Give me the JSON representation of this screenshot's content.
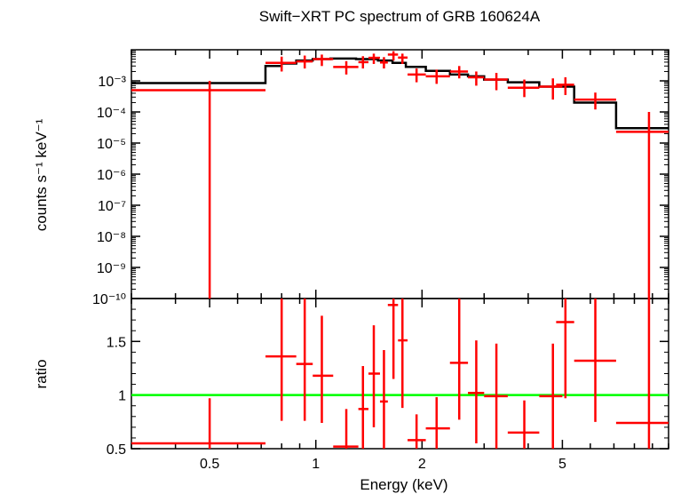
{
  "chart_data": [
    {
      "type": "scatter",
      "title": "Swift−XRT PC spectrum of GRB 160624A",
      "xlabel": "",
      "ylabel": "counts s⁻¹ keV⁻¹",
      "x_scale": "log",
      "y_scale": "log",
      "xlim": [
        0.3,
        10
      ],
      "ylim": [
        1e-10,
        0.01
      ],
      "ytick_labels": [
        "10⁻¹⁰",
        "10⁻⁹",
        "10⁻⁸",
        "10⁻⁷",
        "10⁻⁶",
        "10⁻⁵",
        "10⁻⁴",
        "10⁻³"
      ],
      "ytick_values": [
        1e-10,
        1e-09,
        1e-08,
        1e-07,
        1e-06,
        1e-05,
        0.0001,
        0.001
      ],
      "series": [
        {
          "kind": "data-with-errors",
          "color": "#ff0000",
          "points": [
            {
              "x": 0.5,
              "xlo": 0.3,
              "xhi": 0.72,
              "y": 0.0005,
              "ylo": 1e-10,
              "yhi": 0.001
            },
            {
              "x": 0.8,
              "xlo": 0.72,
              "xhi": 0.88,
              "y": 0.0038,
              "ylo": 0.002,
              "yhi": 0.006
            },
            {
              "x": 0.93,
              "xlo": 0.88,
              "xhi": 0.98,
              "y": 0.0042,
              "ylo": 0.0025,
              "yhi": 0.0065
            },
            {
              "x": 1.04,
              "xlo": 0.98,
              "xhi": 1.12,
              "y": 0.005,
              "ylo": 0.003,
              "yhi": 0.007
            },
            {
              "x": 1.22,
              "xlo": 1.12,
              "xhi": 1.32,
              "y": 0.0028,
              "ylo": 0.0016,
              "yhi": 0.0043
            },
            {
              "x": 1.36,
              "xlo": 1.32,
              "xhi": 1.41,
              "y": 0.004,
              "ylo": 0.0025,
              "yhi": 0.0062
            },
            {
              "x": 1.46,
              "xlo": 1.41,
              "xhi": 1.52,
              "y": 0.0055,
              "ylo": 0.0035,
              "yhi": 0.0075
            },
            {
              "x": 1.56,
              "xlo": 1.52,
              "xhi": 1.6,
              "y": 0.0039,
              "ylo": 0.0025,
              "yhi": 0.0058
            },
            {
              "x": 1.66,
              "xlo": 1.6,
              "xhi": 1.71,
              "y": 0.007,
              "ylo": 0.0045,
              "yhi": 0.009
            },
            {
              "x": 1.76,
              "xlo": 1.71,
              "xhi": 1.82,
              "y": 0.0056,
              "ylo": 0.0035,
              "yhi": 0.0075
            },
            {
              "x": 1.93,
              "xlo": 1.82,
              "xhi": 2.05,
              "y": 0.0016,
              "ylo": 0.0009,
              "yhi": 0.0025
            },
            {
              "x": 2.2,
              "xlo": 2.05,
              "xhi": 2.4,
              "y": 0.0014,
              "ylo": 0.0008,
              "yhi": 0.0023
            },
            {
              "x": 2.55,
              "xlo": 2.4,
              "xhi": 2.7,
              "y": 0.002,
              "ylo": 0.0012,
              "yhi": 0.003
            },
            {
              "x": 2.85,
              "xlo": 2.7,
              "xhi": 3.0,
              "y": 0.0013,
              "ylo": 0.0007,
              "yhi": 0.002
            },
            {
              "x": 3.25,
              "xlo": 3.0,
              "xhi": 3.5,
              "y": 0.0011,
              "ylo": 0.0005,
              "yhi": 0.0018
            },
            {
              "x": 3.9,
              "xlo": 3.5,
              "xhi": 4.3,
              "y": 0.0006,
              "ylo": 0.0003,
              "yhi": 0.0011
            },
            {
              "x": 4.7,
              "xlo": 4.3,
              "xhi": 5.0,
              "y": 0.00065,
              "ylo": 0.00025,
              "yhi": 0.0012
            },
            {
              "x": 5.1,
              "xlo": 4.8,
              "xhi": 5.4,
              "y": 0.00075,
              "ylo": 0.00035,
              "yhi": 0.0013
            },
            {
              "x": 6.2,
              "xlo": 5.4,
              "xhi": 7.1,
              "y": 0.00025,
              "ylo": 0.00012,
              "yhi": 0.00042
            },
            {
              "x": 8.8,
              "xlo": 7.1,
              "xhi": 10.0,
              "y": 2.3e-05,
              "ylo": 1e-10,
              "yhi": 0.0001
            }
          ]
        },
        {
          "kind": "model-step",
          "color": "#000000",
          "steps": [
            {
              "xlo": 0.3,
              "xhi": 0.72,
              "y": 0.00085
            },
            {
              "xlo": 0.72,
              "xhi": 0.8,
              "y": 0.003
            },
            {
              "xlo": 0.8,
              "xhi": 0.88,
              "y": 0.0036
            },
            {
              "xlo": 0.88,
              "xhi": 0.98,
              "y": 0.0045
            },
            {
              "xlo": 0.98,
              "xhi": 1.1,
              "y": 0.005
            },
            {
              "xlo": 1.1,
              "xhi": 1.3,
              "y": 0.0052
            },
            {
              "xlo": 1.3,
              "xhi": 1.5,
              "y": 0.005
            },
            {
              "xlo": 1.5,
              "xhi": 1.65,
              "y": 0.0045
            },
            {
              "xlo": 1.65,
              "xhi": 1.8,
              "y": 0.0038
            },
            {
              "xlo": 1.8,
              "xhi": 2.05,
              "y": 0.0028
            },
            {
              "xlo": 2.05,
              "xhi": 2.4,
              "y": 0.0021
            },
            {
              "xlo": 2.4,
              "xhi": 2.7,
              "y": 0.0016
            },
            {
              "xlo": 2.7,
              "xhi": 3.0,
              "y": 0.0014
            },
            {
              "xlo": 3.0,
              "xhi": 3.5,
              "y": 0.0011
            },
            {
              "xlo": 3.5,
              "xhi": 4.3,
              "y": 0.0009
            },
            {
              "xlo": 4.3,
              "xhi": 5.4,
              "y": 0.00065
            },
            {
              "xlo": 5.4,
              "xhi": 7.1,
              "y": 0.0002
            },
            {
              "xlo": 7.1,
              "xhi": 10.0,
              "y": 3e-05
            }
          ]
        }
      ]
    },
    {
      "type": "scatter",
      "xlabel": "Energy (keV)",
      "ylabel": "ratio",
      "x_scale": "log",
      "y_scale": "linear",
      "xlim": [
        0.3,
        10
      ],
      "ylim": [
        0.5,
        1.9
      ],
      "ytick_labels": [
        "0.5",
        "1",
        "1.5"
      ],
      "ytick_values": [
        0.5,
        1,
        1.5
      ],
      "xtick_labels": [
        "0.5",
        "1",
        "2",
        "5"
      ],
      "xtick_values": [
        0.5,
        1,
        2,
        5
      ],
      "reference_line": {
        "y": 1,
        "color": "#00ff00"
      },
      "series": [
        {
          "kind": "ratio-with-errors",
          "color": "#ff0000",
          "points": [
            {
              "x": 0.5,
              "xlo": 0.3,
              "xhi": 0.72,
              "y": 0.55,
              "ylo": 0.5,
              "yhi": 0.97
            },
            {
              "x": 0.8,
              "xlo": 0.72,
              "xhi": 0.88,
              "y": 1.36,
              "ylo": 0.76,
              "yhi": 1.9
            },
            {
              "x": 0.93,
              "xlo": 0.88,
              "xhi": 0.98,
              "y": 1.29,
              "ylo": 0.76,
              "yhi": 1.9
            },
            {
              "x": 1.04,
              "xlo": 0.98,
              "xhi": 1.12,
              "y": 1.18,
              "ylo": 0.74,
              "yhi": 1.74
            },
            {
              "x": 1.22,
              "xlo": 1.12,
              "xhi": 1.32,
              "y": 0.52,
              "ylo": 0.5,
              "yhi": 0.87
            },
            {
              "x": 1.36,
              "xlo": 1.32,
              "xhi": 1.41,
              "y": 0.87,
              "ylo": 0.5,
              "yhi": 1.27
            },
            {
              "x": 1.46,
              "xlo": 1.41,
              "xhi": 1.52,
              "y": 1.2,
              "ylo": 0.7,
              "yhi": 1.65
            },
            {
              "x": 1.56,
              "xlo": 1.52,
              "xhi": 1.6,
              "y": 0.94,
              "ylo": 0.5,
              "yhi": 1.42
            },
            {
              "x": 1.66,
              "xlo": 1.6,
              "xhi": 1.71,
              "y": 1.84,
              "ylo": 1.15,
              "yhi": 1.9
            },
            {
              "x": 1.76,
              "xlo": 1.71,
              "xhi": 1.82,
              "y": 1.51,
              "ylo": 0.88,
              "yhi": 1.9
            },
            {
              "x": 1.93,
              "xlo": 1.82,
              "xhi": 2.05,
              "y": 0.58,
              "ylo": 0.5,
              "yhi": 0.82
            },
            {
              "x": 2.2,
              "xlo": 2.05,
              "xhi": 2.4,
              "y": 0.69,
              "ylo": 0.5,
              "yhi": 0.98
            },
            {
              "x": 2.55,
              "xlo": 2.4,
              "xhi": 2.7,
              "y": 1.3,
              "ylo": 0.77,
              "yhi": 1.9
            },
            {
              "x": 2.85,
              "xlo": 2.7,
              "xhi": 3.0,
              "y": 1.02,
              "ylo": 0.55,
              "yhi": 1.51
            },
            {
              "x": 3.25,
              "xlo": 3.0,
              "xhi": 3.5,
              "y": 0.99,
              "ylo": 0.5,
              "yhi": 1.48
            },
            {
              "x": 3.9,
              "xlo": 3.5,
              "xhi": 4.3,
              "y": 0.65,
              "ylo": 0.5,
              "yhi": 0.95
            },
            {
              "x": 4.7,
              "xlo": 4.3,
              "xhi": 5.0,
              "y": 0.99,
              "ylo": 0.5,
              "yhi": 1.48
            },
            {
              "x": 5.1,
              "xlo": 4.8,
              "xhi": 5.4,
              "y": 1.68,
              "ylo": 0.97,
              "yhi": 1.9
            },
            {
              "x": 6.2,
              "xlo": 5.4,
              "xhi": 7.1,
              "y": 1.32,
              "ylo": 0.75,
              "yhi": 1.9
            },
            {
              "x": 8.8,
              "xlo": 7.1,
              "xhi": 10.0,
              "y": 0.74,
              "ylo": 0.5,
              "yhi": 1.9
            }
          ]
        }
      ]
    }
  ]
}
